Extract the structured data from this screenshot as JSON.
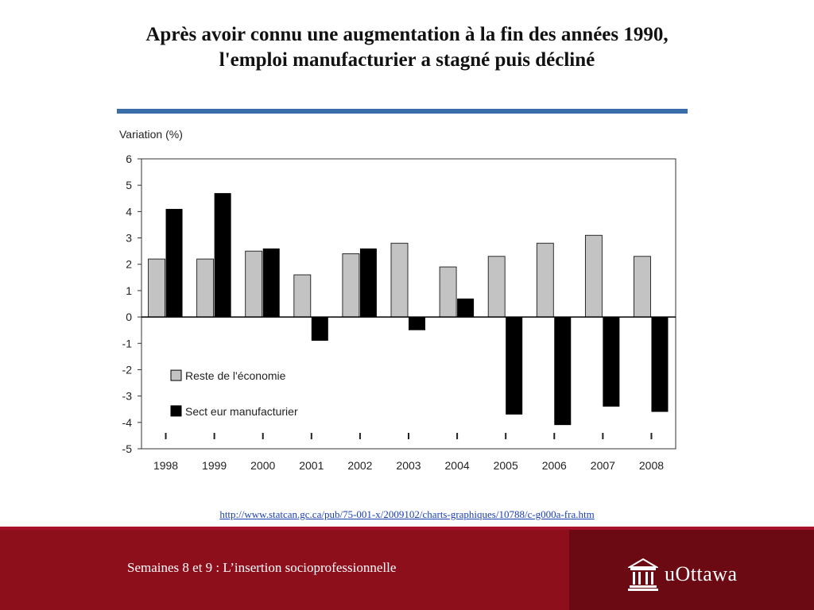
{
  "slide": {
    "title_line1": "Après avoir connu une augmentation à la fin des années 1990,",
    "title_line2": "l'emploi manufacturier a stagné puis décliné",
    "source_url": "http://www.statcan.gc.ca/pub/75-001-x/2009102/charts-graphiques/10788/c-g000a-fra.htm",
    "footer_text": "Semaines 8 et 9 : L’insertion socioprofessionnelle",
    "logo_text": "uOttawa"
  },
  "colors": {
    "accent_rule": "#3b6ea8",
    "series_light": "#c3c3c3",
    "series_dark": "#000000",
    "footer_bg": "#8e0f1c",
    "footer_dark": "#6c0a14"
  },
  "chart_data": {
    "type": "bar",
    "ylabel": "Variation (%)",
    "ylim": [
      -5,
      6
    ],
    "yticks": [
      6,
      5,
      4,
      3,
      2,
      1,
      0,
      -1,
      -2,
      -3,
      -4,
      -5
    ],
    "categories": [
      "1998",
      "1999",
      "2000",
      "2001",
      "2002",
      "2003",
      "2004",
      "2005",
      "2006",
      "2007",
      "2008"
    ],
    "series": [
      {
        "name": "Reste de l'économie",
        "values": [
          2.2,
          2.2,
          2.5,
          1.6,
          2.4,
          2.8,
          1.9,
          2.3,
          2.8,
          3.1,
          2.3
        ]
      },
      {
        "name": "Sect eur manufacturier",
        "values": [
          4.1,
          4.7,
          2.6,
          -0.9,
          2.6,
          -0.5,
          0.7,
          -3.7,
          -4.1,
          -3.4,
          -3.6
        ]
      }
    ],
    "grid": false,
    "legend_position": "bottom-left"
  }
}
